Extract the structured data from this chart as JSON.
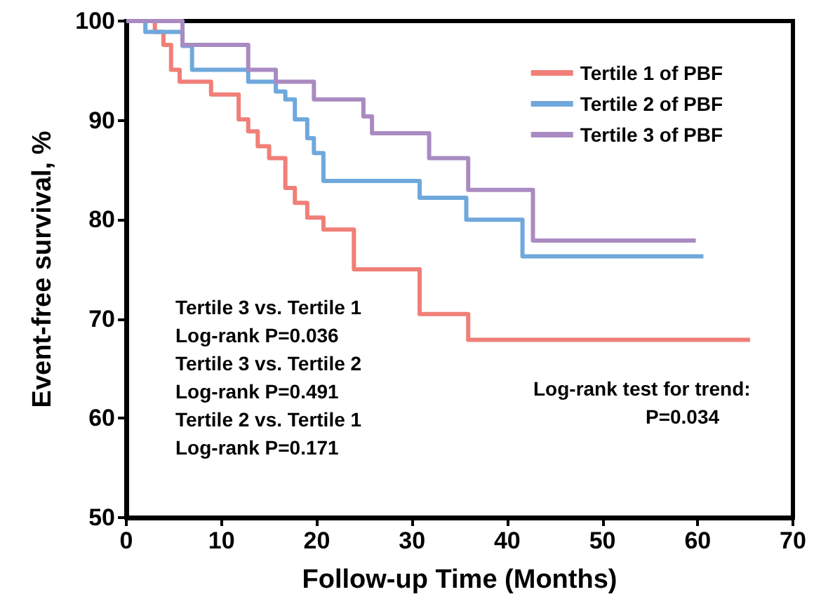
{
  "chart_data": {
    "type": "step",
    "xlabel": "Follow-up Time (Months)",
    "ylabel": "Event-free survival, %",
    "xlim": [
      0,
      70
    ],
    "xticks": [
      0,
      10,
      20,
      30,
      40,
      50,
      60,
      70
    ],
    "ylim": [
      50,
      100
    ],
    "yticks": [
      50,
      60,
      70,
      80,
      90,
      100
    ],
    "grid": false,
    "legend": "top right",
    "line_style": "solid",
    "series": [
      {
        "name": "Tertile 1 of PBF",
        "color": "#f07f78",
        "x": [
          0,
          3,
          3.9,
          4.7,
          5.6,
          8.9,
          11.8,
          12.8,
          13.8,
          15,
          16.7,
          17.7,
          19,
          20.7,
          23.9,
          30.8,
          35.9,
          65.5
        ],
        "values": [
          100,
          98.9,
          97.6,
          95.1,
          93.9,
          92.6,
          90.1,
          88.9,
          87.4,
          86.2,
          83.2,
          81.7,
          80.2,
          79,
          75,
          70.5,
          67.9,
          67.9
        ]
      },
      {
        "name": "Tertile 2 of PBF",
        "color": "#6fa8dc",
        "x": [
          0,
          2,
          5.9,
          6.9,
          12.8,
          15.7,
          16.7,
          17.7,
          19,
          19.7,
          20.7,
          30.8,
          35.7,
          41.6,
          60.6
        ],
        "values": [
          100,
          98.9,
          97.5,
          95.1,
          93.9,
          92.9,
          92.1,
          90.1,
          88.2,
          86.7,
          83.9,
          82.2,
          80,
          76.3,
          76.3
        ]
      },
      {
        "name": "Tertile 3 of PBF",
        "color": "#a98bc2",
        "x": [
          0,
          5.9,
          12.8,
          15.7,
          19.7,
          24.9,
          25.8,
          31.8,
          35.9,
          42.7,
          59.8
        ],
        "values": [
          100,
          97.6,
          95.1,
          93.9,
          92.1,
          90.4,
          88.7,
          86.2,
          83,
          77.9,
          77.9
        ]
      }
    ],
    "annotations": [
      "Tertile 3 vs. Tertile 1",
      "Log-rank P=0.036",
      "Tertile 3 vs. Tertile 2",
      "Log-rank P=0.491",
      "Tertile 2 vs. Tertile 1",
      "Log-rank P=0.171",
      "Log-rank test for trend:",
      "P=0.034"
    ]
  }
}
